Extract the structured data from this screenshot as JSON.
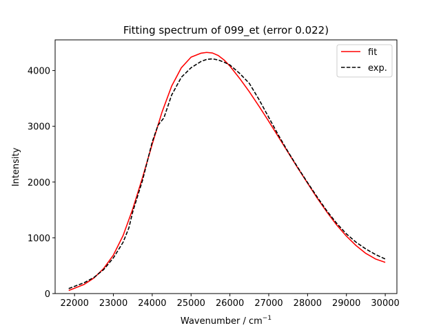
{
  "chart_data": {
    "type": "line",
    "title": "Fitting spectrum of 099_et (error 0.022)",
    "xlabel": "Wavenumber / cm",
    "xlabel_sup": "−1",
    "ylabel": "Intensity",
    "xlim": [
      21500,
      30300
    ],
    "ylim": [
      0,
      4550
    ],
    "xticks": [
      22000,
      23000,
      24000,
      25000,
      26000,
      27000,
      28000,
      29000,
      30000
    ],
    "yticks": [
      0,
      1000,
      2000,
      3000,
      4000
    ],
    "grid": false,
    "legend_position": "top-right",
    "series": [
      {
        "name": "fit",
        "color": "#ff0000",
        "style": "solid",
        "x": [
          21850,
          22000,
          22250,
          22500,
          22750,
          23000,
          23250,
          23500,
          23750,
          24000,
          24250,
          24500,
          24750,
          25000,
          25250,
          25400,
          25550,
          25700,
          25850,
          26000,
          26250,
          26500,
          26750,
          27000,
          27250,
          27500,
          27750,
          28000,
          28250,
          28500,
          28750,
          29000,
          29250,
          29500,
          29750,
          30000
        ],
        "y": [
          55,
          95,
          165,
          280,
          450,
          690,
          1040,
          1520,
          2080,
          2680,
          3250,
          3720,
          4050,
          4240,
          4310,
          4325,
          4315,
          4270,
          4190,
          4080,
          3860,
          3620,
          3360,
          3090,
          2810,
          2530,
          2250,
          1980,
          1710,
          1460,
          1230,
          1030,
          860,
          720,
          620,
          560
        ]
      },
      {
        "name": "exp.",
        "color": "#000000",
        "style": "dashed",
        "x": [
          21850,
          22000,
          22250,
          22500,
          22750,
          23000,
          23250,
          23400,
          23500,
          23750,
          24000,
          24150,
          24300,
          24500,
          24750,
          25000,
          25250,
          25400,
          25550,
          25700,
          25850,
          26000,
          26250,
          26500,
          26750,
          27000,
          27250,
          27500,
          27750,
          28000,
          28250,
          28500,
          28750,
          29000,
          29250,
          29500,
          29750,
          30000
        ],
        "y": [
          90,
          130,
          195,
          290,
          430,
          640,
          920,
          1180,
          1470,
          2030,
          2720,
          3020,
          3150,
          3560,
          3880,
          4050,
          4160,
          4200,
          4210,
          4190,
          4150,
          4100,
          3950,
          3770,
          3480,
          3160,
          2840,
          2540,
          2260,
          1990,
          1730,
          1480,
          1260,
          1070,
          920,
          800,
          700,
          620
        ]
      }
    ]
  }
}
